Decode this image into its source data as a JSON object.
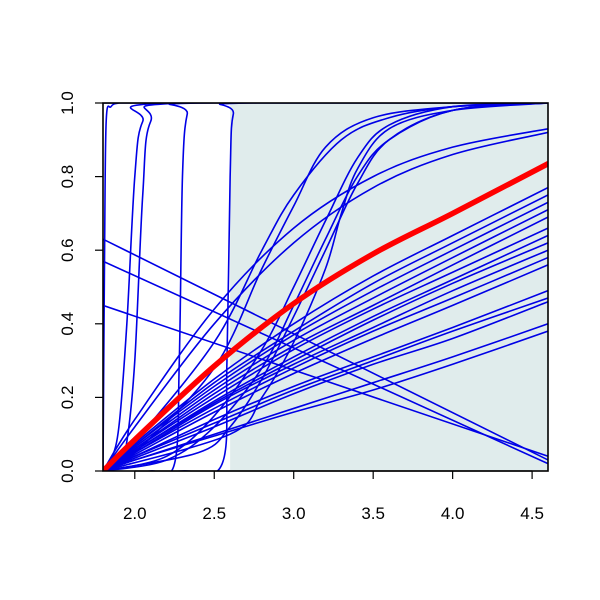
{
  "chart_data": {
    "type": "line",
    "title": "",
    "xlabel": "",
    "ylabel": "",
    "xlim": [
      1.8,
      4.6
    ],
    "ylim": [
      0.0,
      1.0
    ],
    "x_ticks": [
      2.0,
      2.5,
      3.0,
      3.5,
      4.0,
      4.5
    ],
    "x_tick_labels": [
      "2.0",
      "2.5",
      "3.0",
      "3.5",
      "4.0",
      "4.5"
    ],
    "y_ticks": [
      0.0,
      0.2,
      0.4,
      0.6,
      0.8,
      1.0
    ],
    "y_tick_labels": [
      "0.0",
      "0.2",
      "0.4",
      "0.6",
      "0.8",
      "1.0"
    ],
    "shaded_region": {
      "x": [
        2.6,
        4.6
      ],
      "y": [
        0.0,
        1.0
      ],
      "color": "#e0ecec"
    },
    "grid": false,
    "legend": "none",
    "colors": {
      "ensemble": "#0000e6",
      "highlight": "#ff0000",
      "bounds": "#00ee00"
    },
    "series": [
      {
        "kind": "highlight",
        "x": [
          1.8,
          2.0,
          2.5,
          3.0,
          3.5,
          4.0,
          4.6
        ],
        "values": [
          0.0,
          0.085,
          0.285,
          0.455,
          0.59,
          0.7,
          0.835
        ]
      },
      {
        "kind": "bound",
        "x": [
          1.8,
          2.0,
          2.5,
          3.0,
          3.5,
          4.0,
          4.6
        ],
        "values": [
          0.0,
          0.11,
          0.355,
          0.55,
          0.7,
          0.815,
          0.925
        ]
      },
      {
        "kind": "bound",
        "x": [
          1.8,
          2.0,
          2.5,
          3.0,
          3.5,
          4.0,
          4.6
        ],
        "values": [
          0.0,
          0.07,
          0.225,
          0.355,
          0.465,
          0.56,
          0.68
        ]
      },
      {
        "kind": "ensemble",
        "x": [
          1.8,
          1.81,
          1.82,
          1.85,
          1.9,
          2.0,
          4.6
        ],
        "values": [
          0.0,
          0.6,
          0.95,
          0.99,
          1.0,
          1.0,
          1.0
        ]
      },
      {
        "kind": "ensemble",
        "x": [
          1.8,
          1.85,
          1.9,
          1.95,
          2.0,
          2.05,
          2.2,
          4.6
        ],
        "values": [
          0.0,
          0.03,
          0.12,
          0.4,
          0.8,
          0.95,
          1.0,
          1.0
        ]
      },
      {
        "kind": "ensemble",
        "x": [
          1.8,
          1.9,
          1.95,
          2.0,
          2.05,
          2.1,
          2.3,
          4.6
        ],
        "values": [
          0.0,
          0.02,
          0.08,
          0.3,
          0.75,
          0.95,
          1.0,
          1.0
        ]
      },
      {
        "kind": "ensemble",
        "x": [
          1.8,
          2.1,
          2.25,
          2.28,
          2.3,
          2.33,
          2.4,
          4.6
        ],
        "values": [
          0.0,
          0.0,
          0.02,
          0.3,
          0.8,
          0.97,
          1.0,
          1.0
        ]
      },
      {
        "kind": "ensemble",
        "x": [
          1.8,
          2.3,
          2.55,
          2.58,
          2.6,
          2.62,
          2.7,
          4.6
        ],
        "values": [
          0.0,
          0.0,
          0.02,
          0.3,
          0.8,
          0.97,
          1.0,
          1.0
        ]
      },
      {
        "kind": "ensemble",
        "x": [
          1.8,
          2.0,
          2.5,
          3.0,
          3.5,
          4.0,
          4.6
        ],
        "values": [
          0.0,
          0.14,
          0.44,
          0.66,
          0.8,
          0.88,
          0.93
        ]
      },
      {
        "kind": "ensemble",
        "x": [
          1.8,
          2.0,
          2.5,
          3.0,
          3.5,
          4.0,
          4.6
        ],
        "values": [
          0.0,
          0.12,
          0.4,
          0.62,
          0.77,
          0.86,
          0.92
        ]
      },
      {
        "kind": "ensemble",
        "x": [
          1.8,
          2.0,
          2.5,
          2.8,
          3.0,
          3.3,
          3.6,
          4.0,
          4.6
        ],
        "values": [
          0.0,
          0.08,
          0.35,
          0.6,
          0.75,
          0.9,
          0.96,
          0.99,
          1.0
        ]
      },
      {
        "kind": "ensemble",
        "x": [
          1.8,
          2.0,
          2.5,
          2.8,
          3.0,
          3.2,
          3.5,
          4.0,
          4.6
        ],
        "values": [
          0.0,
          0.05,
          0.28,
          0.55,
          0.72,
          0.88,
          0.96,
          0.99,
          1.0
        ]
      },
      {
        "kind": "ensemble",
        "x": [
          1.8,
          2.2,
          2.5,
          2.8,
          3.0,
          3.2,
          3.4,
          3.6,
          4.0,
          4.6
        ],
        "values": [
          0.0,
          0.04,
          0.15,
          0.33,
          0.5,
          0.68,
          0.85,
          0.94,
          0.99,
          1.0
        ]
      },
      {
        "kind": "ensemble",
        "x": [
          1.8,
          2.2,
          2.5,
          2.8,
          3.0,
          3.2,
          3.4,
          3.6,
          4.0,
          4.6
        ],
        "values": [
          0.0,
          0.03,
          0.12,
          0.28,
          0.45,
          0.63,
          0.8,
          0.9,
          0.98,
          1.0
        ]
      },
      {
        "kind": "ensemble",
        "x": [
          1.8,
          2.4,
          2.6,
          2.8,
          3.0,
          3.2,
          3.4,
          3.6,
          4.0,
          4.6
        ],
        "values": [
          0.0,
          0.05,
          0.12,
          0.25,
          0.42,
          0.6,
          0.78,
          0.9,
          0.98,
          1.0
        ]
      },
      {
        "kind": "ensemble",
        "x": [
          1.8,
          2.6,
          2.8,
          3.0,
          3.2,
          3.3,
          3.4,
          3.6,
          4.0,
          4.6
        ],
        "values": [
          0.0,
          0.1,
          0.2,
          0.35,
          0.55,
          0.7,
          0.82,
          0.93,
          0.98,
          1.0
        ]
      },
      {
        "kind": "ensemble",
        "x": [
          1.8,
          2.0,
          2.5,
          3.0,
          3.5,
          4.0,
          4.6
        ],
        "values": [
          0.0,
          0.075,
          0.25,
          0.4,
          0.53,
          0.64,
          0.77
        ]
      },
      {
        "kind": "ensemble",
        "x": [
          1.8,
          2.0,
          2.5,
          3.0,
          3.5,
          4.0,
          4.6
        ],
        "values": [
          0.0,
          0.07,
          0.24,
          0.38,
          0.51,
          0.62,
          0.75
        ]
      },
      {
        "kind": "ensemble",
        "x": [
          1.8,
          2.0,
          2.5,
          3.0,
          3.5,
          4.0,
          4.6
        ],
        "values": [
          0.0,
          0.07,
          0.23,
          0.37,
          0.49,
          0.6,
          0.73
        ]
      },
      {
        "kind": "ensemble",
        "x": [
          1.8,
          2.0,
          2.5,
          3.0,
          3.5,
          4.0,
          4.6
        ],
        "values": [
          0.0,
          0.065,
          0.22,
          0.355,
          0.47,
          0.58,
          0.71
        ]
      },
      {
        "kind": "ensemble",
        "x": [
          1.8,
          2.0,
          2.5,
          3.0,
          3.5,
          4.0,
          4.6
        ],
        "values": [
          0.0,
          0.06,
          0.21,
          0.34,
          0.45,
          0.56,
          0.69
        ]
      },
      {
        "kind": "ensemble",
        "x": [
          1.8,
          2.0,
          2.5,
          3.0,
          3.5,
          4.0,
          4.6
        ],
        "values": [
          0.0,
          0.06,
          0.2,
          0.33,
          0.44,
          0.54,
          0.66
        ]
      },
      {
        "kind": "ensemble",
        "x": [
          1.8,
          2.0,
          2.5,
          3.0,
          3.5,
          4.0,
          4.6
        ],
        "values": [
          0.0,
          0.055,
          0.19,
          0.31,
          0.42,
          0.52,
          0.64
        ]
      },
      {
        "kind": "ensemble",
        "x": [
          1.8,
          2.0,
          2.5,
          3.0,
          3.5,
          4.0,
          4.6
        ],
        "values": [
          0.0,
          0.055,
          0.185,
          0.3,
          0.41,
          0.51,
          0.62
        ]
      },
      {
        "kind": "ensemble",
        "x": [
          1.8,
          2.0,
          2.5,
          3.0,
          3.5,
          4.0,
          4.6
        ],
        "values": [
          0.0,
          0.05,
          0.18,
          0.29,
          0.39,
          0.49,
          0.6
        ]
      },
      {
        "kind": "ensemble",
        "x": [
          1.8,
          2.0,
          2.5,
          3.0,
          3.5,
          4.0,
          4.6
        ],
        "values": [
          0.0,
          0.05,
          0.17,
          0.28,
          0.38,
          0.47,
          0.58
        ]
      },
      {
        "kind": "ensemble",
        "x": [
          1.8,
          2.0,
          2.5,
          3.0,
          3.5,
          4.0,
          4.6
        ],
        "values": [
          0.0,
          0.045,
          0.16,
          0.265,
          0.36,
          0.45,
          0.56
        ]
      },
      {
        "kind": "ensemble",
        "x": [
          1.8,
          2.0,
          2.5,
          3.0,
          3.5,
          4.0,
          4.6
        ],
        "values": [
          0.0,
          0.04,
          0.14,
          0.23,
          0.31,
          0.39,
          0.49
        ]
      },
      {
        "kind": "ensemble",
        "x": [
          1.8,
          2.0,
          2.5,
          3.0,
          3.5,
          4.0,
          4.6
        ],
        "values": [
          0.0,
          0.04,
          0.13,
          0.22,
          0.3,
          0.38,
          0.47
        ]
      },
      {
        "kind": "ensemble",
        "x": [
          1.8,
          2.0,
          2.5,
          3.0,
          3.5,
          4.0,
          4.6
        ],
        "values": [
          0.0,
          0.035,
          0.12,
          0.21,
          0.29,
          0.36,
          0.46
        ]
      },
      {
        "kind": "ensemble",
        "x": [
          1.8,
          2.0,
          2.5,
          3.0,
          3.5,
          4.0,
          4.6
        ],
        "values": [
          0.0,
          0.03,
          0.1,
          0.17,
          0.24,
          0.31,
          0.4
        ]
      },
      {
        "kind": "ensemble",
        "x": [
          1.8,
          2.0,
          2.5,
          3.0,
          3.5,
          4.0,
          4.6
        ],
        "values": [
          0.0,
          0.03,
          0.095,
          0.16,
          0.22,
          0.29,
          0.38
        ]
      },
      {
        "kind": "ensemble",
        "x": [
          1.8,
          4.6
        ],
        "values": [
          0.63,
          0.03
        ]
      },
      {
        "kind": "ensemble",
        "x": [
          1.8,
          4.6
        ],
        "values": [
          0.57,
          0.02
        ]
      },
      {
        "kind": "ensemble",
        "x": [
          1.8,
          4.6
        ],
        "values": [
          0.45,
          0.04
        ]
      }
    ]
  }
}
